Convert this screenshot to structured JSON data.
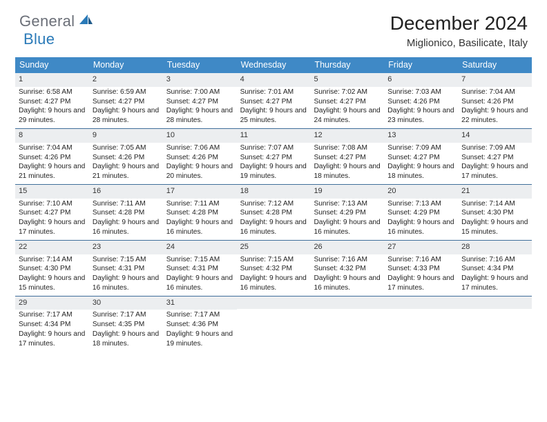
{
  "brand": {
    "text1": "General",
    "text2": "Blue",
    "text_color": "#6b6f78",
    "accent_color": "#2a7ab8"
  },
  "title": "December 2024",
  "subtitle": "Miglionico, Basilicate, Italy",
  "colors": {
    "header_bg": "#3f89c6",
    "header_fg": "#ffffff",
    "daynum_bg": "#eceef0",
    "week_divider": "#3f6e9a",
    "background": "#ffffff",
    "body_text": "#222222"
  },
  "weekdays": [
    "Sunday",
    "Monday",
    "Tuesday",
    "Wednesday",
    "Thursday",
    "Friday",
    "Saturday"
  ],
  "weeks": [
    [
      {
        "n": "1",
        "sr": "6:58 AM",
        "ss": "4:27 PM",
        "dl": "9 hours and 29 minutes."
      },
      {
        "n": "2",
        "sr": "6:59 AM",
        "ss": "4:27 PM",
        "dl": "9 hours and 28 minutes."
      },
      {
        "n": "3",
        "sr": "7:00 AM",
        "ss": "4:27 PM",
        "dl": "9 hours and 28 minutes."
      },
      {
        "n": "4",
        "sr": "7:01 AM",
        "ss": "4:27 PM",
        "dl": "9 hours and 25 minutes."
      },
      {
        "n": "5",
        "sr": "7:02 AM",
        "ss": "4:27 PM",
        "dl": "9 hours and 24 minutes."
      },
      {
        "n": "6",
        "sr": "7:03 AM",
        "ss": "4:26 PM",
        "dl": "9 hours and 23 minutes."
      },
      {
        "n": "7",
        "sr": "7:04 AM",
        "ss": "4:26 PM",
        "dl": "9 hours and 22 minutes."
      }
    ],
    [
      {
        "n": "8",
        "sr": "7:04 AM",
        "ss": "4:26 PM",
        "dl": "9 hours and 21 minutes."
      },
      {
        "n": "9",
        "sr": "7:05 AM",
        "ss": "4:26 PM",
        "dl": "9 hours and 21 minutes."
      },
      {
        "n": "10",
        "sr": "7:06 AM",
        "ss": "4:26 PM",
        "dl": "9 hours and 20 minutes."
      },
      {
        "n": "11",
        "sr": "7:07 AM",
        "ss": "4:27 PM",
        "dl": "9 hours and 19 minutes."
      },
      {
        "n": "12",
        "sr": "7:08 AM",
        "ss": "4:27 PM",
        "dl": "9 hours and 18 minutes."
      },
      {
        "n": "13",
        "sr": "7:09 AM",
        "ss": "4:27 PM",
        "dl": "9 hours and 18 minutes."
      },
      {
        "n": "14",
        "sr": "7:09 AM",
        "ss": "4:27 PM",
        "dl": "9 hours and 17 minutes."
      }
    ],
    [
      {
        "n": "15",
        "sr": "7:10 AM",
        "ss": "4:27 PM",
        "dl": "9 hours and 17 minutes."
      },
      {
        "n": "16",
        "sr": "7:11 AM",
        "ss": "4:28 PM",
        "dl": "9 hours and 16 minutes."
      },
      {
        "n": "17",
        "sr": "7:11 AM",
        "ss": "4:28 PM",
        "dl": "9 hours and 16 minutes."
      },
      {
        "n": "18",
        "sr": "7:12 AM",
        "ss": "4:28 PM",
        "dl": "9 hours and 16 minutes."
      },
      {
        "n": "19",
        "sr": "7:13 AM",
        "ss": "4:29 PM",
        "dl": "9 hours and 16 minutes."
      },
      {
        "n": "20",
        "sr": "7:13 AM",
        "ss": "4:29 PM",
        "dl": "9 hours and 16 minutes."
      },
      {
        "n": "21",
        "sr": "7:14 AM",
        "ss": "4:30 PM",
        "dl": "9 hours and 15 minutes."
      }
    ],
    [
      {
        "n": "22",
        "sr": "7:14 AM",
        "ss": "4:30 PM",
        "dl": "9 hours and 15 minutes."
      },
      {
        "n": "23",
        "sr": "7:15 AM",
        "ss": "4:31 PM",
        "dl": "9 hours and 16 minutes."
      },
      {
        "n": "24",
        "sr": "7:15 AM",
        "ss": "4:31 PM",
        "dl": "9 hours and 16 minutes."
      },
      {
        "n": "25",
        "sr": "7:15 AM",
        "ss": "4:32 PM",
        "dl": "9 hours and 16 minutes."
      },
      {
        "n": "26",
        "sr": "7:16 AM",
        "ss": "4:32 PM",
        "dl": "9 hours and 16 minutes."
      },
      {
        "n": "27",
        "sr": "7:16 AM",
        "ss": "4:33 PM",
        "dl": "9 hours and 17 minutes."
      },
      {
        "n": "28",
        "sr": "7:16 AM",
        "ss": "4:34 PM",
        "dl": "9 hours and 17 minutes."
      }
    ],
    [
      {
        "n": "29",
        "sr": "7:17 AM",
        "ss": "4:34 PM",
        "dl": "9 hours and 17 minutes."
      },
      {
        "n": "30",
        "sr": "7:17 AM",
        "ss": "4:35 PM",
        "dl": "9 hours and 18 minutes."
      },
      {
        "n": "31",
        "sr": "7:17 AM",
        "ss": "4:36 PM",
        "dl": "9 hours and 19 minutes."
      },
      null,
      null,
      null,
      null
    ]
  ],
  "labels": {
    "sunrise": "Sunrise:",
    "sunset": "Sunset:",
    "daylight": "Daylight:"
  }
}
